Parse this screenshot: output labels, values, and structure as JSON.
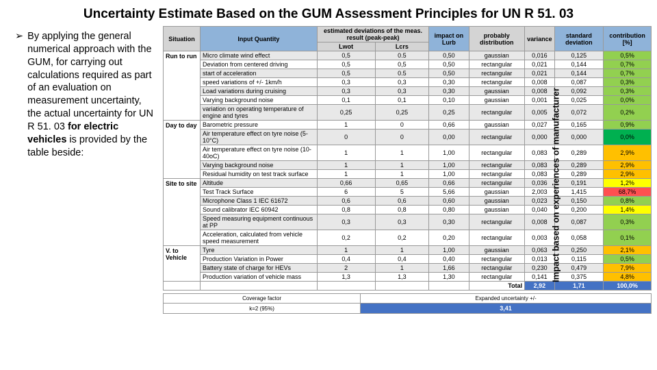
{
  "title": "Uncertainty Estimate Based on the GUM Assessment Principles for UN R 51. 03",
  "bullet_mark": "➢",
  "bullet_html": "By applying the general numerical approach with the GUM, for carrying out calculations required as part of an evaluation on measurement uncertainty, the actual uncertainty for UN R 51. 03 <b>for electric vehicles</b> is provided by the table beside:",
  "vertical_label": "Impact based on experiences of manufacturer",
  "headers": {
    "situation": "Situation",
    "input": "Input Quantity",
    "dev1": "estimated deviations of the meas. result (peak-peak)",
    "dev_lwot": "Lwot",
    "dev_lcrs": "Lcrs",
    "impact": "impact on Lurb",
    "prob": "probably distribution",
    "var": "variance",
    "std": "standard deviation",
    "contrib": "contribution [%]"
  },
  "groups": [
    {
      "sit": "Run to run",
      "rows": [
        {
          "iq": "Micro climate wind effect",
          "l": "0,5",
          "r": "0.5",
          "imp": "0,50",
          "pd": "gaussian",
          "v": "0,016",
          "sd": "0,125",
          "c": "0,5%",
          "col": "#92d050"
        },
        {
          "iq": "Deviation from centered driving",
          "l": "0,5",
          "r": "0,5",
          "imp": "0,50",
          "pd": "rectangular",
          "v": "0,021",
          "sd": "0,144",
          "c": "0,7%",
          "col": "#92d050"
        },
        {
          "iq": "start of acceleration",
          "l": "0,5",
          "r": "0.5",
          "imp": "0,50",
          "pd": "rectangular",
          "v": "0,021",
          "sd": "0,144",
          "c": "0,7%",
          "col": "#92d050"
        },
        {
          "iq": "speed variations of +/- 1km/h",
          "l": "0,3",
          "r": "0,3",
          "imp": "0,30",
          "pd": "rectangular",
          "v": "0,008",
          "sd": "0,087",
          "c": "0,3%",
          "col": "#92d050"
        },
        {
          "iq": "Load variations during cruising",
          "l": "0,3",
          "r": "0,3",
          "imp": "0,30",
          "pd": "gaussian",
          "v": "0,008",
          "sd": "0,092",
          "c": "0,3%",
          "col": "#92d050"
        },
        {
          "iq": "Varying background noise",
          "l": "0,1",
          "r": "0,1",
          "imp": "0,10",
          "pd": "gaussian",
          "v": "0,001",
          "sd": "0,025",
          "c": "0,0%",
          "col": "#92d050"
        },
        {
          "iq": "variation on operating temperature of engine and tyres",
          "l": "0,25",
          "r": "0,25",
          "imp": "0,25",
          "pd": "rectangular",
          "v": "0,005",
          "sd": "0,072",
          "c": "0,2%",
          "col": "#92d050"
        }
      ]
    },
    {
      "sit": "Day to day",
      "rows": [
        {
          "iq": "Barometric pressure",
          "l": "1",
          "r": "0",
          "imp": "0,66",
          "pd": "gaussian",
          "v": "0,027",
          "sd": "0,165",
          "c": "0,9%",
          "col": "#92d050"
        },
        {
          "iq": "Air temperature effect on tyre noise (5-10°C)",
          "l": "0",
          "r": "0",
          "imp": "0,00",
          "pd": "rectangular",
          "v": "0,000",
          "sd": "0,000",
          "c": "0,0%",
          "col": "#00b050"
        },
        {
          "iq": "Air temperature effect on tyre noise (10-40oC)",
          "l": "1",
          "r": "1",
          "imp": "1,00",
          "pd": "rectangular",
          "v": "0,083",
          "sd": "0,289",
          "c": "2,9%",
          "col": "#ffc000"
        },
        {
          "iq": "Varying background noise",
          "l": "1",
          "r": "1",
          "imp": "1,00",
          "pd": "rectangular",
          "v": "0,083",
          "sd": "0,289",
          "c": "2,9%",
          "col": "#ffc000"
        },
        {
          "iq": "Residual humidity on test track surface",
          "l": "1",
          "r": "1",
          "imp": "1,00",
          "pd": "rectangular",
          "v": "0,083",
          "sd": "0,289",
          "c": "2,9%",
          "col": "#ffc000"
        }
      ]
    },
    {
      "sit": "Site to site",
      "rows": [
        {
          "iq": "Altitude",
          "l": "0,66",
          "r": "0,65",
          "imp": "0,66",
          "pd": "rectangular",
          "v": "0,036",
          "sd": "0,191",
          "c": "1,2%",
          "col": "#ffff00"
        },
        {
          "iq": "Test Track Surface",
          "l": "6",
          "r": "5",
          "imp": "5,66",
          "pd": "gaussian",
          "v": "2,003",
          "sd": "1,415",
          "c": "68,7%",
          "col": "#ff5050"
        },
        {
          "iq": "Microphone Class 1 IEC 61672",
          "l": "0,6",
          "r": "0,6",
          "imp": "0,60",
          "pd": "gaussian",
          "v": "0,023",
          "sd": "0,150",
          "c": "0,8%",
          "col": "#92d050"
        },
        {
          "iq": "Sound calibrator IEC 60942",
          "l": "0,8",
          "r": "0,8",
          "imp": "0,80",
          "pd": "gaussian",
          "v": "0,040",
          "sd": "0,200",
          "c": "1,4%",
          "col": "#ffff00"
        },
        {
          "iq": "Speed measuring equipment continuous at PP",
          "l": "0,3",
          "r": "0,3",
          "imp": "0,30",
          "pd": "rectangular",
          "v": "0,008",
          "sd": "0,087",
          "c": "0,3%",
          "col": "#92d050"
        },
        {
          "iq": "Acceleration, calculated from vehicle speed measurement",
          "l": "0,2",
          "r": "0,2",
          "imp": "0,20",
          "pd": "rectangular",
          "v": "0,003",
          "sd": "0,058",
          "c": "0,1%",
          "col": "#92d050"
        }
      ]
    },
    {
      "sit": "V. to Vehicle",
      "rows": [
        {
          "iq": "Tyre",
          "l": "1",
          "r": "1",
          "imp": "1,00",
          "pd": "gaussian",
          "v": "0,063",
          "sd": "0,250",
          "c": "2,1%",
          "col": "#ffc000"
        },
        {
          "iq": "Production Variation in Power",
          "l": "0,4",
          "r": "0,4",
          "imp": "0,40",
          "pd": "rectangular",
          "v": "0,013",
          "sd": "0,115",
          "c": "0,5%",
          "col": "#92d050"
        },
        {
          "iq": "Battery state of charge for HEVs",
          "l": "2",
          "r": "1",
          "imp": "1,66",
          "pd": "rectangular",
          "v": "0,230",
          "sd": "0,479",
          "c": "7,9%",
          "col": "#ffc000"
        },
        {
          "iq": "Production variation of vehicle mass",
          "l": "1,3",
          "r": "1,3",
          "imp": "1,30",
          "pd": "rectangular",
          "v": "0,141",
          "sd": "0,375",
          "c": "4,8%",
          "col": "#ffc000"
        }
      ]
    }
  ],
  "total": {
    "label": "Total",
    "var": "2,92",
    "std": "1,71",
    "contrib": "100,0%"
  },
  "footer": {
    "cov_lbl": "Coverage factor",
    "cov_sub": "k=2 (95%)",
    "exp_lbl": "Expanded uncertainty +/-",
    "val": "3,41"
  }
}
